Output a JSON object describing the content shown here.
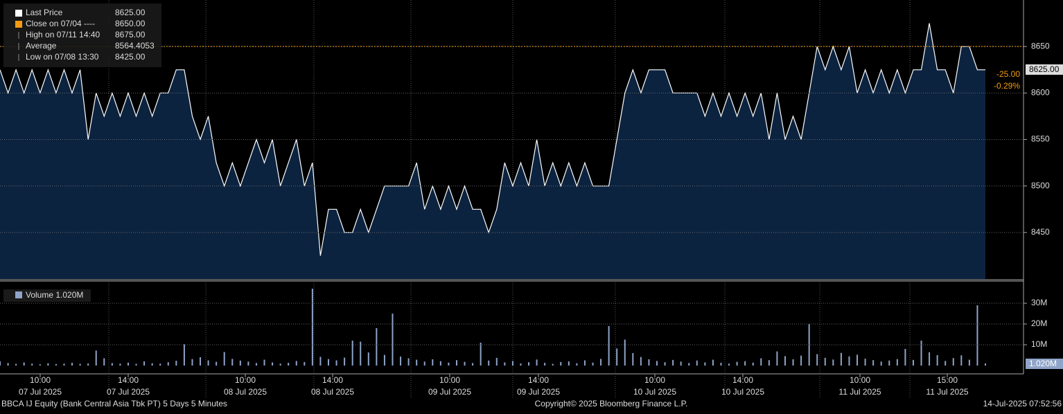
{
  "chart_data": {
    "type": "line",
    "price": {
      "name": "Last Price",
      "color": "#ffffff",
      "fill": "#0c2340",
      "values": [
        8625,
        8600,
        8625,
        8600,
        8625,
        8600,
        8625,
        8600,
        8625,
        8600,
        8625,
        8550,
        8600,
        8575,
        8600,
        8575,
        8600,
        8575,
        8600,
        8575,
        8600,
        8600,
        8625,
        8625,
        8575,
        8550,
        8575,
        8525,
        8500,
        8525,
        8500,
        8525,
        8550,
        8525,
        8550,
        8500,
        8525,
        8550,
        8500,
        8525,
        8425,
        8475,
        8475,
        8450,
        8450,
        8475,
        8450,
        8475,
        8500,
        8500,
        8500,
        8500,
        8525,
        8475,
        8500,
        8475,
        8500,
        8475,
        8500,
        8475,
        8475,
        8450,
        8475,
        8525,
        8500,
        8525,
        8500,
        8550,
        8500,
        8525,
        8500,
        8525,
        8500,
        8525,
        8500,
        8500,
        8500,
        8550,
        8600,
        8625,
        8600,
        8625,
        8625,
        8625,
        8600,
        8600,
        8600,
        8600,
        8575,
        8600,
        8575,
        8600,
        8575,
        8600,
        8575,
        8600,
        8550,
        8600,
        8550,
        8575,
        8550,
        8600,
        8650,
        8625,
        8650,
        8625,
        8650,
        8600,
        8625,
        8600,
        8625,
        8600,
        8625,
        8600,
        8625,
        8625,
        8675,
        8625,
        8625,
        8600,
        8650,
        8650,
        8625,
        8625
      ]
    },
    "ylim": [
      8400,
      8700
    ],
    "yticks": [
      8450,
      8500,
      8550,
      8600,
      8650
    ],
    "volume": {
      "type": "bar",
      "name": "Volume 1.020M",
      "color": "#8fa4c8",
      "values": [
        2.1,
        1.2,
        0.8,
        1.5,
        0.9,
        0.6,
        1.1,
        0.7,
        0.9,
        1.3,
        0.8,
        1.0,
        7.2,
        3.5,
        1.2,
        0.9,
        1.4,
        0.8,
        2.0,
        1.1,
        0.9,
        1.6,
        2.3,
        10.2,
        3.1,
        4.0,
        2.5,
        1.8,
        6.5,
        3.2,
        2.4,
        1.9,
        1.2,
        2.8,
        1.5,
        0.9,
        1.3,
        2.2,
        1.7,
        37.0,
        4.2,
        3.1,
        2.5,
        3.8,
        12.0,
        11.5,
        6.3,
        18.0,
        5.1,
        25.0,
        4.3,
        3.5,
        2.8,
        1.9,
        3.0,
        2.1,
        1.4,
        2.6,
        1.8,
        1.2,
        11.0,
        2.4,
        3.7,
        1.5,
        2.2,
        1.0,
        1.6,
        2.9,
        1.3,
        0.8,
        1.7,
        2.0,
        1.1,
        2.5,
        1.4,
        3.2,
        19.0,
        8.2,
        12.5,
        6.0,
        4.1,
        3.0,
        2.2,
        1.6,
        2.7,
        1.9,
        1.2,
        2.4,
        1.5,
        2.8,
        1.3,
        0.9,
        1.8,
        2.1,
        1.4,
        3.5,
        2.6,
        6.8,
        4.5,
        3.0,
        4.8,
        20.0,
        5.5,
        3.7,
        2.9,
        6.1,
        4.4,
        5.2,
        3.3,
        2.6,
        1.9,
        2.4,
        3.1,
        8.0,
        2.7,
        12.0,
        6.4,
        5.0,
        2.2,
        3.6,
        4.9,
        2.8,
        29.0,
        1.02
      ],
      "ylim": [
        -4,
        40
      ],
      "yticks": [
        {
          "value": 10,
          "label": "10M"
        },
        {
          "value": 20,
          "label": "20M"
        },
        {
          "value": 30,
          "label": "30M"
        }
      ],
      "tag": "1.020M"
    },
    "x_labels": [
      {
        "time": "10:00",
        "date": "07 Jul 2025"
      },
      {
        "time": "14:00",
        "date": "07 Jul 2025"
      },
      {
        "time": "10:00",
        "date": "08 Jul 2025"
      },
      {
        "time": "14:00",
        "date": "08 Jul 2025"
      },
      {
        "time": "10:00",
        "date": "09 Jul 2025"
      },
      {
        "time": "14:00",
        "date": "09 Jul 2025"
      },
      {
        "time": "10:00",
        "date": "10 Jul 2025"
      },
      {
        "time": "14:00",
        "date": "10 Jul 2025"
      },
      {
        "time": "10:00",
        "date": "11 Jul 2025"
      },
      {
        "time": "15:00",
        "date": "11 Jul 2025"
      }
    ],
    "legend": [
      {
        "label": "Last Price",
        "value_label": "8625.00",
        "color": "#ffffff"
      },
      {
        "label": "Close on 07/04 ----",
        "value": 8650,
        "value_label": "8650.00",
        "color": "#f39c12"
      },
      {
        "label": "High on 07/11 14:40",
        "value_label": "8675.00"
      },
      {
        "label": "Average",
        "value_label": "8564.4053"
      },
      {
        "label": "Low on 07/08 13:30",
        "value_label": "8425.00"
      }
    ],
    "last_tag": "8625.00",
    "change": "-25.00",
    "change_pct": "-0.29%"
  },
  "footer": {
    "left": "BBCA IJ Equity (Bank Central Asia Tbk PT) 5 Days 5 Minutes",
    "center": "Copyright© 2025 Bloomberg Finance L.P.",
    "right": "14-Jul-2025 07:52:56"
  }
}
